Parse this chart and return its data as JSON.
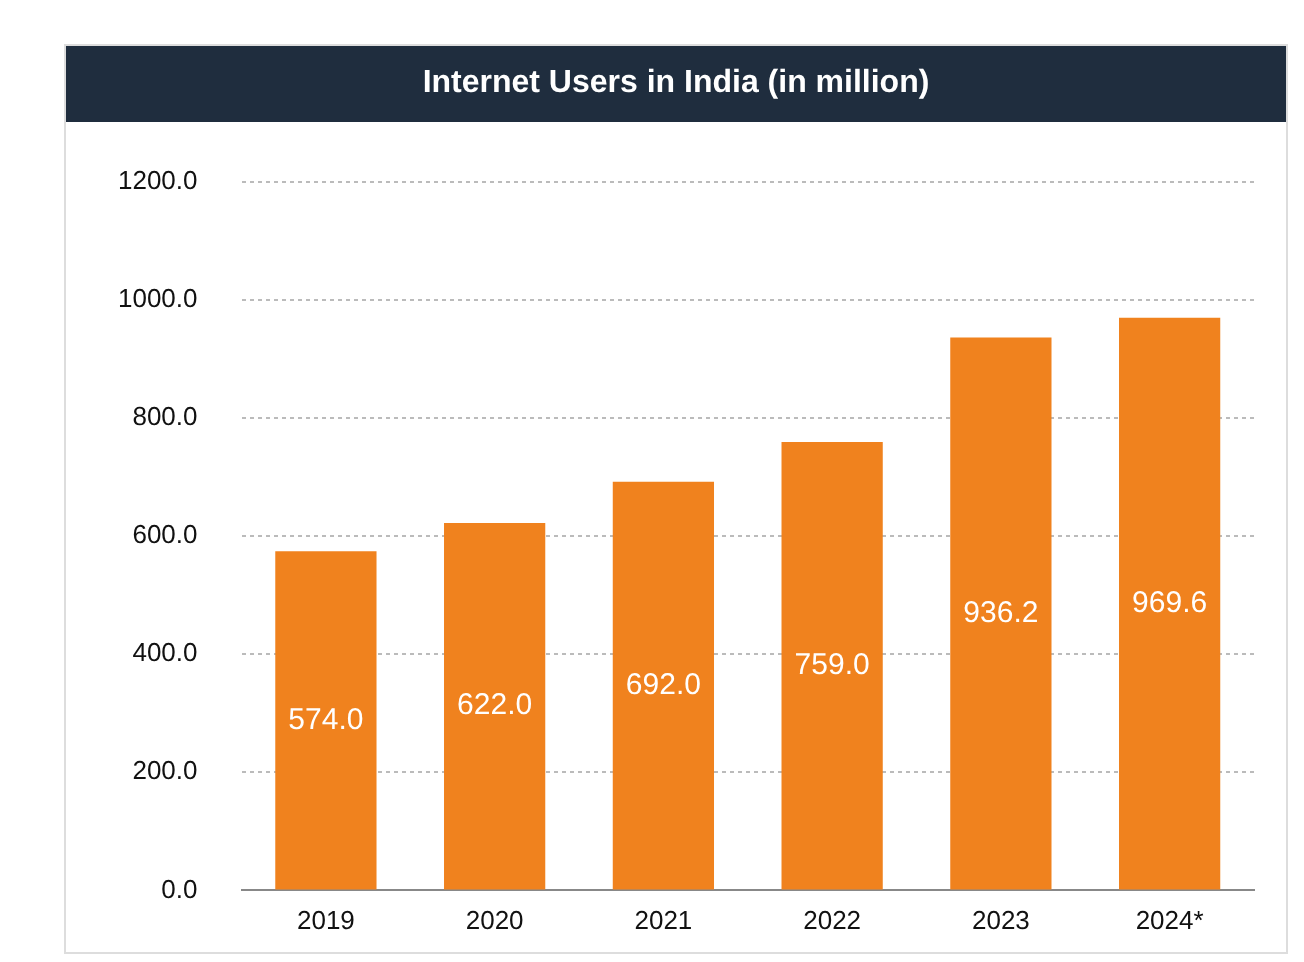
{
  "chart_data": {
    "type": "bar",
    "title": "Internet Users in India (in million)",
    "categories": [
      "2019",
      "2020",
      "2021",
      "2022",
      "2023",
      "2024*"
    ],
    "values": [
      574.0,
      622.0,
      692.0,
      759.0,
      936.2,
      969.6
    ],
    "color": "#f0821e",
    "ylim": [
      0,
      1200
    ],
    "yticks": [
      {
        "value": 0,
        "label": "0.0"
      },
      {
        "value": 200,
        "label": "200.0"
      },
      {
        "value": 400,
        "label": "400.0"
      },
      {
        "value": 600,
        "label": "600.0"
      },
      {
        "value": 800,
        "label": "800.0"
      },
      {
        "value": 1000,
        "label": "1000.0"
      },
      {
        "value": 1200,
        "label": "1200.0"
      }
    ],
    "value_labels": [
      "574.0",
      "622.0",
      "692.0",
      "759.0",
      "936.2",
      "969.6"
    ],
    "grid": "y",
    "legend": false
  }
}
